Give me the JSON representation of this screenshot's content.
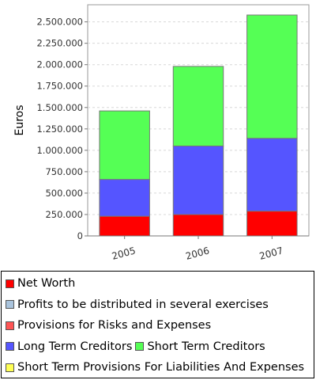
{
  "chart_data": {
    "type": "bar",
    "stacked": true,
    "title": "",
    "xlabel": "",
    "ylabel": "Euros",
    "ylim": [
      0,
      2700000
    ],
    "grid": true,
    "legend_position": "bottom",
    "categories": [
      "2005",
      "2006",
      "2007"
    ],
    "y_ticks": [
      0,
      250000,
      500000,
      750000,
      1000000,
      1250000,
      1500000,
      1750000,
      2000000,
      2250000,
      2500000
    ],
    "y_tick_labels": [
      "0",
      "250.000",
      "500.000",
      "750.000",
      "1.000.000",
      "1.250.000",
      "1.500.000",
      "1.750.000",
      "2.000.000",
      "2.250.000",
      "2.500.000"
    ],
    "series": [
      {
        "name": "Net Worth",
        "color": "#ff0000",
        "values": [
          230000,
          250000,
          290000
        ]
      },
      {
        "name": "Profits to be distributed in several exercises",
        "color": "#aac4dd",
        "values": [
          0,
          0,
          0
        ]
      },
      {
        "name": "Provisions for Risks and Expenses",
        "color": "#ff5555",
        "values": [
          0,
          0,
          0
        ]
      },
      {
        "name": "Long Term Creditors",
        "color": "#5555ff",
        "values": [
          430000,
          800000,
          850000
        ]
      },
      {
        "name": "Short Term Creditors",
        "color": "#55ff55",
        "values": [
          800000,
          930000,
          1440000
        ]
      },
      {
        "name": "Short Term Provisions For Liabilities And Expenses",
        "color": "#ffff55",
        "values": [
          0,
          0,
          0
        ]
      }
    ]
  },
  "legend": {
    "rows": [
      [
        {
          "label": "Net Worth",
          "color": "#ff0000"
        }
      ],
      [
        {
          "label": "Profits to be distributed in several exercises",
          "color": "#aac4dd"
        }
      ],
      [
        {
          "label": "Provisions for Risks and Expenses",
          "color": "#ff5555"
        }
      ],
      [
        {
          "label": "Long Term Creditors",
          "color": "#5555ff"
        },
        {
          "label": "Short Term Creditors",
          "color": "#55ff55"
        }
      ],
      [
        {
          "label": "Short Term Provisions For Liabilities And Expenses",
          "color": "#ffff55"
        }
      ]
    ]
  }
}
